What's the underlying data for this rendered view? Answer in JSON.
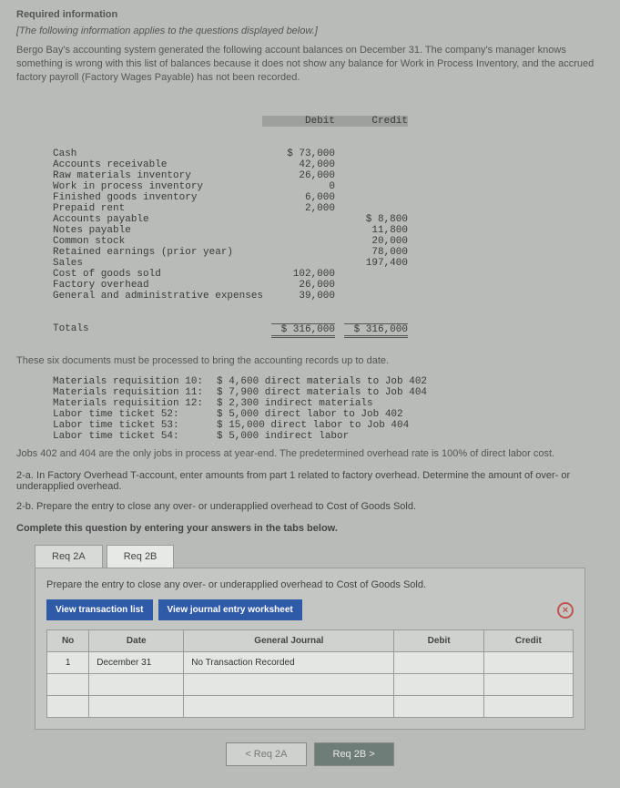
{
  "header": {
    "required": "Required information",
    "disclaimer": "[The following information applies to the questions displayed below.]",
    "intro": "Bergo Bay's accounting system generated the following account balances on December 31. The company's manager knows something is wrong with this list of balances because it does not show any balance for Work in Process Inventory, and the accrued factory payroll (Factory Wages Payable) has not been recorded."
  },
  "trial": {
    "col_debit": "Debit",
    "col_credit": "Credit",
    "rows": [
      {
        "name": "Cash",
        "debit": "$ 73,000",
        "credit": ""
      },
      {
        "name": "Accounts receivable",
        "debit": "42,000",
        "credit": ""
      },
      {
        "name": "Raw materials inventory",
        "debit": "26,000",
        "credit": ""
      },
      {
        "name": "Work in process inventory",
        "debit": "0",
        "credit": ""
      },
      {
        "name": "Finished goods inventory",
        "debit": "6,000",
        "credit": ""
      },
      {
        "name": "Prepaid rent",
        "debit": "2,000",
        "credit": ""
      },
      {
        "name": "Accounts payable",
        "debit": "",
        "credit": "$ 8,800"
      },
      {
        "name": "Notes payable",
        "debit": "",
        "credit": "11,800"
      },
      {
        "name": "Common stock",
        "debit": "",
        "credit": "20,000"
      },
      {
        "name": "Retained earnings (prior year)",
        "debit": "",
        "credit": "78,000"
      },
      {
        "name": "Sales",
        "debit": "",
        "credit": "197,400"
      },
      {
        "name": "Cost of goods sold",
        "debit": "102,000",
        "credit": ""
      },
      {
        "name": "Factory overhead",
        "debit": "26,000",
        "credit": ""
      },
      {
        "name": "General and administrative expenses",
        "debit": "39,000",
        "credit": ""
      }
    ],
    "totals_label": "Totals",
    "totals_debit": "$ 316,000",
    "totals_credit": "$ 316,000"
  },
  "mid_text": "These six documents must be processed to bring the accounting records up to date.",
  "docs": [
    {
      "label": "Materials requisition 10:",
      "desc": "$ 4,600 direct materials to Job 402"
    },
    {
      "label": "Materials requisition 11:",
      "desc": "$ 7,900 direct materials to Job 404"
    },
    {
      "label": "Materials requisition 12:",
      "desc": "$ 2,300 indirect materials"
    },
    {
      "label": "Labor time ticket 52:",
      "desc": "$ 5,000 direct labor to Job 402"
    },
    {
      "label": "Labor time ticket 53:",
      "desc": "$ 15,000 direct labor to Job 404"
    },
    {
      "label": "Labor time ticket 54:",
      "desc": "$ 5,000 indirect labor"
    }
  ],
  "jobs_note": "Jobs 402 and 404 are the only jobs in process at year-end. The predetermined overhead rate is 100% of direct labor cost.",
  "q2a": "2-a. In Factory Overhead T-account, enter amounts from part 1 related to factory overhead. Determine the amount of over- or underapplied overhead.",
  "q2b": "2-b. Prepare the entry to close any over- or underapplied overhead to Cost of Goods Sold.",
  "complete": "Complete this question by entering your answers in the tabs below.",
  "tabs": {
    "a": "Req 2A",
    "b": "Req 2B"
  },
  "panel_instr": "Prepare the entry to close any over- or underapplied overhead to Cost of Goods Sold.",
  "buttons": {
    "view_trans": "View transaction list",
    "view_journal": "View journal entry worksheet"
  },
  "table": {
    "headers": {
      "no": "No",
      "date": "Date",
      "gj": "General Journal",
      "debit": "Debit",
      "credit": "Credit"
    },
    "row1": {
      "no": "1",
      "date": "December 31",
      "gj": "No Transaction Recorded",
      "debit": "",
      "credit": ""
    }
  },
  "nav": {
    "prev": "<  Req 2A",
    "next": "Req 2B  >"
  },
  "close": "×"
}
